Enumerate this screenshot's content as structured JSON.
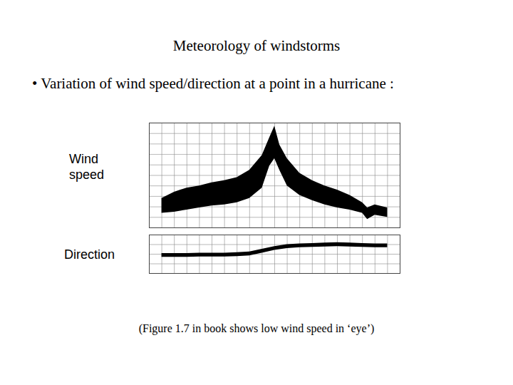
{
  "slide": {
    "title": "Meteorology of windstorms",
    "bullet": "• Variation of wind speed/direction at a point in a hurricane :",
    "caption": "(Figure 1.7 in book shows low wind speed in ‘eye’)"
  },
  "chart_data": [
    {
      "type": "band",
      "ylabel": "Wind speed",
      "color": "#000000",
      "grid": true,
      "tick_labels": false,
      "xlim": [
        0,
        100
      ],
      "ylim": [
        0,
        100
      ],
      "xticks": [
        0,
        5,
        10,
        15,
        20,
        25,
        30,
        35,
        40,
        45,
        50,
        55,
        60,
        65,
        70,
        75,
        80,
        85,
        90,
        95,
        100
      ],
      "yticks": [
        0,
        10,
        20,
        30,
        40,
        50,
        60,
        70,
        80,
        90,
        100
      ],
      "x": [
        5,
        10,
        15,
        20,
        25,
        30,
        35,
        40,
        45,
        48,
        50,
        52,
        55,
        60,
        65,
        70,
        75,
        80,
        85,
        87,
        90,
        95
      ],
      "low": [
        14,
        15,
        17,
        19,
        21,
        22,
        24,
        28,
        38,
        59,
        66,
        55,
        40,
        31,
        26,
        22,
        19,
        17,
        14,
        8,
        12,
        10
      ],
      "high": [
        28,
        34,
        38,
        40,
        43,
        45,
        48,
        55,
        69,
        86,
        97,
        79,
        66,
        52,
        45,
        40,
        36,
        31,
        24,
        19,
        22,
        19
      ]
    },
    {
      "type": "band",
      "ylabel": "Direction",
      "color": "#000000",
      "grid": true,
      "tick_labels": false,
      "xlim": [
        0,
        100
      ],
      "ylim": [
        0,
        100
      ],
      "xticks": [
        0,
        5,
        10,
        15,
        20,
        25,
        30,
        35,
        40,
        45,
        50,
        55,
        60,
        65,
        70,
        75,
        80,
        85,
        90,
        95,
        100
      ],
      "yticks": [
        0,
        25,
        50,
        75,
        100
      ],
      "x": [
        5,
        10,
        15,
        20,
        25,
        30,
        35,
        40,
        45,
        50,
        55,
        60,
        65,
        70,
        75,
        80,
        85,
        90,
        95
      ],
      "low": [
        42,
        42,
        42,
        43,
        43,
        43,
        44,
        46,
        53,
        60,
        65,
        67,
        68,
        69,
        70,
        69,
        68,
        67,
        67
      ],
      "high": [
        52,
        52,
        52,
        53,
        53,
        53,
        54,
        56,
        63,
        70,
        75,
        77,
        78,
        79,
        80,
        79,
        78,
        77,
        77
      ]
    }
  ]
}
